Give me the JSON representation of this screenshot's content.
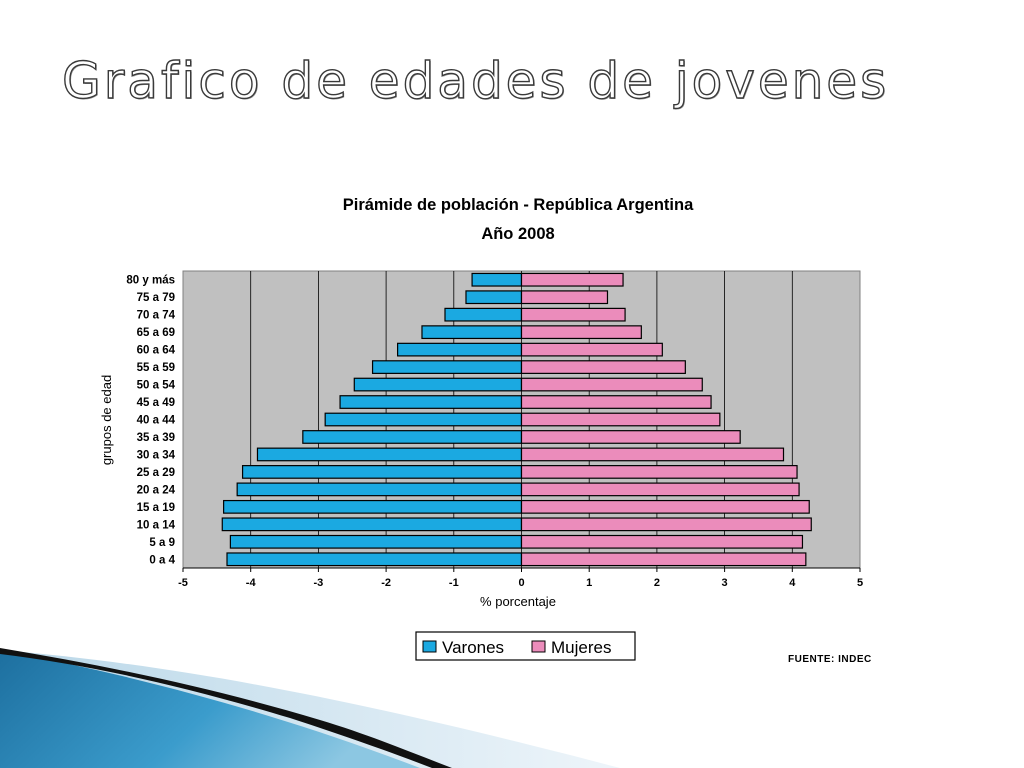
{
  "slide": {
    "title": "Grafico de edades de jovenes"
  },
  "colors": {
    "varones": "#1ba9e1",
    "mujeres": "#eb8cbb",
    "plot_background": "#c0c0c0",
    "wave_dark": "#0f0f0f",
    "wave_blue": "#2a86b6",
    "wave_light": "#cfe2ee"
  },
  "chart_data": {
    "type": "bar",
    "orientation": "horizontal",
    "title": "Pirámide de población - República Argentina",
    "subtitle": "Año 2008",
    "xlabel": "% porcentaje",
    "ylabel": "grupos de edad",
    "xlim": [
      -5,
      5
    ],
    "x_ticks": [
      "-5",
      "-4",
      "-3",
      "-2",
      "-1",
      "0",
      "1",
      "2",
      "3",
      "4",
      "5"
    ],
    "grid": true,
    "legend_position": "bottom",
    "categories": [
      "0 a 4",
      "5 a 9",
      "10 a 14",
      "15 a 19",
      "20 a 24",
      "25 a 29",
      "30 a 34",
      "35 a 39",
      "40 a 44",
      "45 a 49",
      "50 a 54",
      "55 a 59",
      "60 a 64",
      "65 a 69",
      "70 a 74",
      "75 a 79",
      "80 y más"
    ],
    "series": [
      {
        "name": "Varones",
        "values": [
          -4.35,
          -4.3,
          -4.42,
          -4.4,
          -4.2,
          -4.12,
          -3.9,
          -3.23,
          -2.9,
          -2.68,
          -2.47,
          -2.2,
          -1.83,
          -1.47,
          -1.13,
          -0.82,
          -0.73
        ]
      },
      {
        "name": "Mujeres",
        "values": [
          4.2,
          4.15,
          4.28,
          4.25,
          4.1,
          4.07,
          3.87,
          3.23,
          2.93,
          2.8,
          2.67,
          2.42,
          2.08,
          1.77,
          1.53,
          1.27,
          1.5
        ]
      }
    ],
    "source": "FUENTE: INDEC"
  }
}
